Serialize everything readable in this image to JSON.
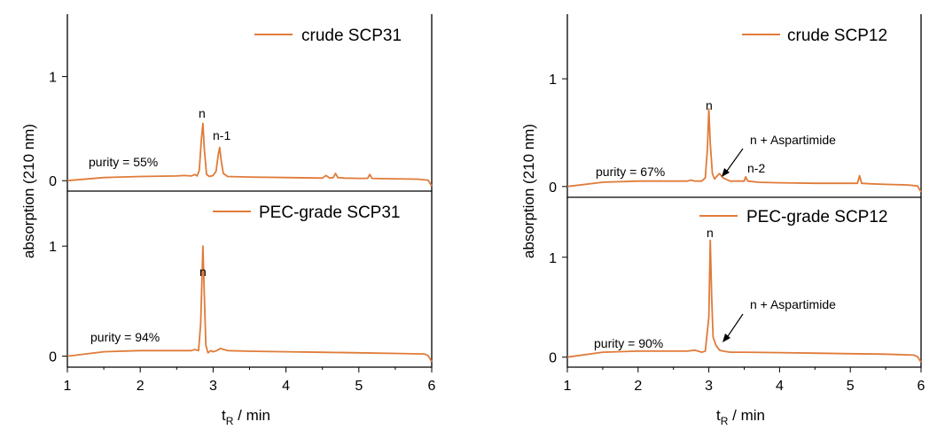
{
  "colors": {
    "trace": "#E07B39",
    "axis": "#000000"
  },
  "axis_titles": {
    "y": "absorption (210 nm)",
    "x_main": "t",
    "x_sub": "R",
    "x_unit": " / min"
  },
  "chart_data": [
    {
      "type": "line",
      "panel": "left-top",
      "series": [
        {
          "name": "crude SCP31",
          "x": [
            1.0,
            1.5,
            2.0,
            2.5,
            2.6,
            2.7,
            2.75,
            2.78,
            2.81,
            2.84,
            2.86,
            2.88,
            2.91,
            2.95,
            3.0,
            3.04,
            3.07,
            3.09,
            3.11,
            3.14,
            3.2,
            3.5,
            4.0,
            4.5,
            4.55,
            4.6,
            4.65,
            4.68,
            4.71,
            4.8,
            5.0,
            5.12,
            5.15,
            5.18,
            5.3,
            5.5,
            5.8,
            5.95,
            6.0
          ],
          "y": [
            0.0,
            0.03,
            0.04,
            0.045,
            0.05,
            0.045,
            0.06,
            0.045,
            0.1,
            0.4,
            0.55,
            0.3,
            0.06,
            0.04,
            0.05,
            0.09,
            0.25,
            0.32,
            0.2,
            0.07,
            0.04,
            0.035,
            0.03,
            0.025,
            0.05,
            0.025,
            0.03,
            0.07,
            0.03,
            0.025,
            0.022,
            0.022,
            0.06,
            0.022,
            0.02,
            0.018,
            0.015,
            0.005,
            -0.05
          ]
        }
      ],
      "annotations": [
        "n",
        "n-1",
        "purity = 55%"
      ],
      "xlim": [
        1,
        6
      ],
      "ylim": [
        -0.1,
        1.6
      ],
      "yticks": [
        0,
        1
      ]
    },
    {
      "type": "line",
      "panel": "left-bottom",
      "series": [
        {
          "name": "PEC-grade SCP31",
          "x": [
            1.0,
            1.5,
            2.0,
            2.5,
            2.7,
            2.75,
            2.8,
            2.83,
            2.86,
            2.88,
            2.9,
            2.93,
            2.97,
            3.0,
            3.05,
            3.1,
            3.2,
            3.5,
            4.0,
            4.5,
            5.0,
            5.5,
            5.9,
            5.95,
            6.0
          ],
          "y": [
            0.0,
            0.04,
            0.05,
            0.05,
            0.05,
            0.06,
            0.05,
            0.3,
            1.0,
            0.55,
            0.1,
            0.03,
            0.05,
            0.04,
            0.05,
            0.07,
            0.05,
            0.045,
            0.04,
            0.035,
            0.03,
            0.025,
            0.02,
            0.005,
            -0.05
          ]
        }
      ],
      "annotations": [
        "n",
        "purity = 94%"
      ],
      "xlim": [
        1,
        6
      ],
      "ylim": [
        -0.1,
        1.5
      ],
      "yticks": [
        0,
        1
      ],
      "xticks": [
        1,
        2,
        3,
        4,
        5,
        6
      ]
    },
    {
      "type": "line",
      "panel": "right-top",
      "series": [
        {
          "name": "crude SCP12",
          "x": [
            1.0,
            1.5,
            2.0,
            2.5,
            2.7,
            2.75,
            2.8,
            2.9,
            2.95,
            2.98,
            3.0,
            3.02,
            3.05,
            3.08,
            3.12,
            3.15,
            3.2,
            3.3,
            3.5,
            3.52,
            3.55,
            3.7,
            4.0,
            4.5,
            5.0,
            5.1,
            5.13,
            5.16,
            5.3,
            5.5,
            5.8,
            5.95,
            6.0
          ],
          "y": [
            0.0,
            0.04,
            0.05,
            0.05,
            0.05,
            0.06,
            0.05,
            0.05,
            0.08,
            0.35,
            0.72,
            0.4,
            0.12,
            0.07,
            0.1,
            0.12,
            0.08,
            0.05,
            0.05,
            0.09,
            0.05,
            0.04,
            0.035,
            0.03,
            0.03,
            0.03,
            0.1,
            0.03,
            0.025,
            0.02,
            0.015,
            0.005,
            -0.05
          ]
        }
      ],
      "annotations": [
        "n",
        "n + Aspartimide",
        "n-2",
        "purity = 67%"
      ],
      "xlim": [
        1,
        6
      ],
      "ylim": [
        -0.1,
        1.6
      ],
      "yticks": [
        0,
        1
      ]
    },
    {
      "type": "line",
      "panel": "right-bottom",
      "series": [
        {
          "name": "PEC-grade SCP12",
          "x": [
            1.0,
            1.5,
            2.0,
            2.5,
            2.7,
            2.8,
            2.9,
            2.95,
            3.0,
            3.02,
            3.04,
            3.06,
            3.1,
            3.15,
            3.2,
            3.3,
            3.5,
            4.0,
            4.5,
            5.0,
            5.5,
            5.9,
            5.95,
            6.0
          ],
          "y": [
            0.0,
            0.05,
            0.06,
            0.06,
            0.06,
            0.07,
            0.05,
            0.06,
            0.4,
            1.17,
            0.6,
            0.2,
            0.12,
            0.07,
            0.06,
            0.05,
            0.05,
            0.045,
            0.04,
            0.035,
            0.03,
            0.02,
            0.005,
            -0.05
          ]
        }
      ],
      "annotations": [
        "n",
        "n + Aspartimide",
        "purity = 90%"
      ],
      "xlim": [
        1,
        6
      ],
      "ylim": [
        -0.1,
        1.6
      ],
      "yticks": [
        0,
        1
      ],
      "xticks": [
        1,
        2,
        3,
        4,
        5,
        6
      ]
    }
  ]
}
